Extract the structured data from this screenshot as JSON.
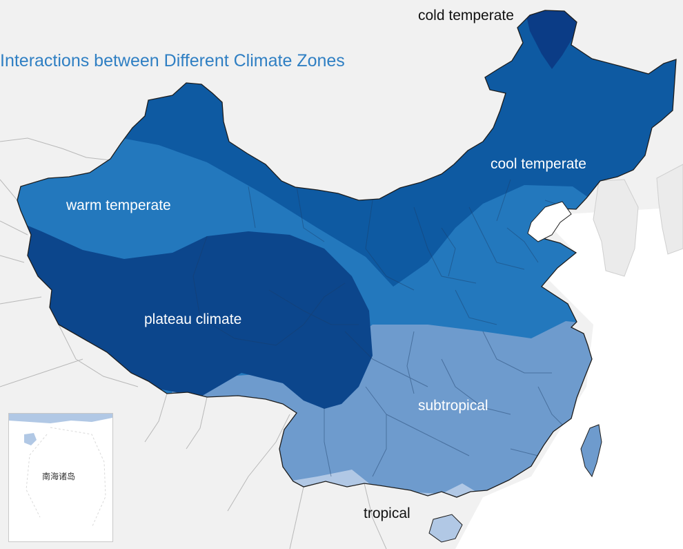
{
  "title": "Interactions between Different Climate Zones",
  "inset_label": "南海诸岛",
  "zones": [
    {
      "id": "cold-temperate",
      "label": "cold temperate",
      "color": "#0b3c86"
    },
    {
      "id": "cool-temperate",
      "label": "cool temperate",
      "color": "#0e5aa2"
    },
    {
      "id": "warm-temperate",
      "label": "warm temperate",
      "color": "#2378bd"
    },
    {
      "id": "plateau-climate",
      "label": "plateau climate",
      "color": "#0c468c"
    },
    {
      "id": "subtropical",
      "label": "subtropical",
      "color": "#6e9bcd"
    },
    {
      "id": "tropical",
      "label": "tropical",
      "color": "#b1c8e5"
    }
  ],
  "colors": {
    "background": "#f1f1f1",
    "neighbor_land": "#ececec",
    "sea": "#ffffff",
    "title": "#2f7fc3"
  }
}
